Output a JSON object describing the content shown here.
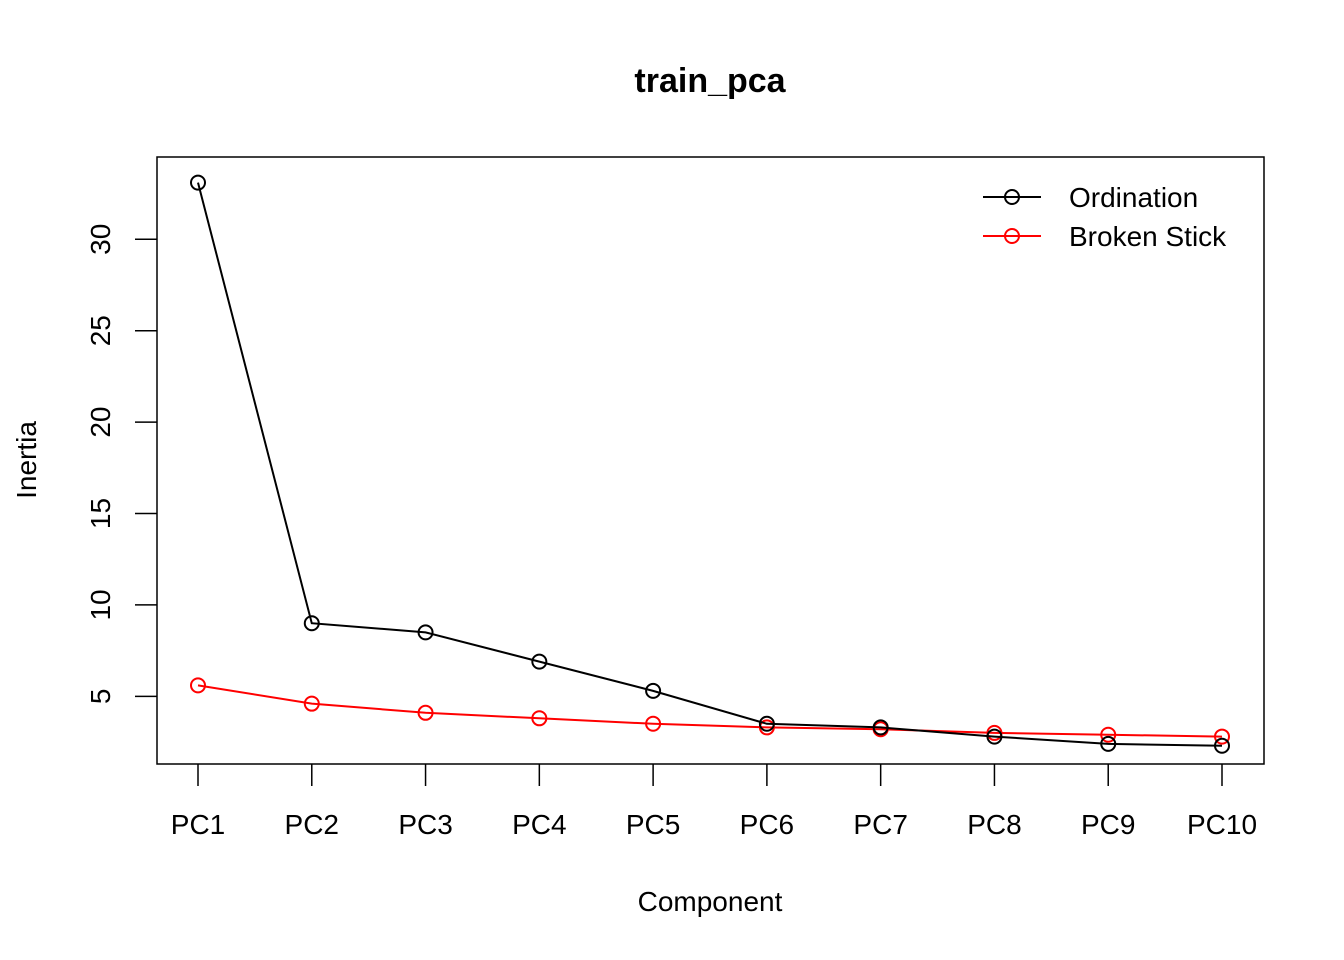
{
  "chart_data": {
    "type": "line",
    "title": "train_pca",
    "xlabel": "Component",
    "ylabel": "Inertia",
    "categories": [
      "PC1",
      "PC2",
      "PC3",
      "PC4",
      "PC5",
      "PC6",
      "PC7",
      "PC8",
      "PC9",
      "PC10"
    ],
    "y_ticks": [
      5,
      10,
      15,
      20,
      25,
      30
    ],
    "y_tick_labels": [
      "5",
      "10",
      "15",
      "20",
      "25",
      "30"
    ],
    "ylim": [
      1.3,
      34.5
    ],
    "grid": false,
    "legend_position": "top-right",
    "series": [
      {
        "name": "Ordination",
        "color": "#000000",
        "marker": "open-circle",
        "values": [
          33.1,
          9.0,
          8.5,
          6.9,
          5.3,
          3.5,
          3.3,
          2.8,
          2.4,
          2.3
        ]
      },
      {
        "name": "Broken Stick",
        "color": "#ff0000",
        "marker": "open-circle",
        "values": [
          5.6,
          4.6,
          4.1,
          3.8,
          3.5,
          3.3,
          3.2,
          3.0,
          2.9,
          2.8
        ]
      }
    ]
  }
}
